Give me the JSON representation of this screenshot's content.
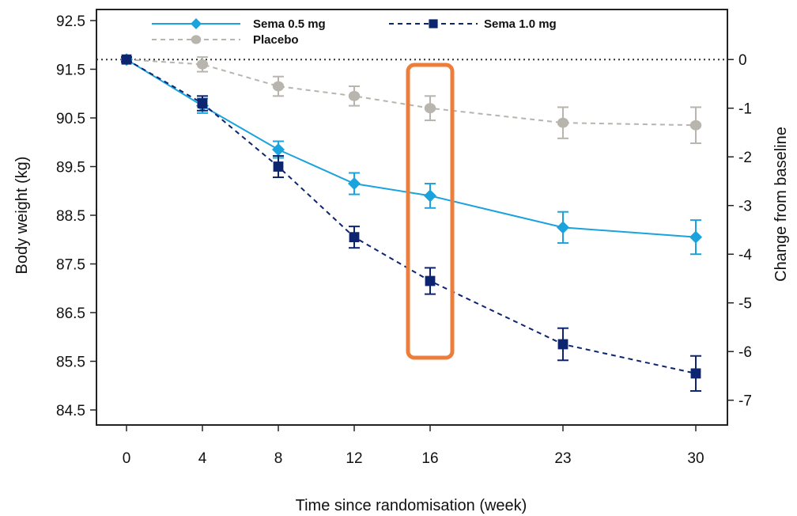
{
  "chart_data": {
    "type": "line",
    "xlabel": "Time since randomisation (week)",
    "ylabel": "Body weight (kg)",
    "ylabel_right": "Change from baseline",
    "x": [
      0,
      4,
      8,
      12,
      16,
      23,
      30
    ],
    "x_tick_labels": [
      "0",
      "4",
      "8",
      "12",
      "16",
      "23",
      "30"
    ],
    "y_ticks": [
      "92.5",
      "91.5",
      "90.5",
      "89.5",
      "88.5",
      "87.5",
      "86.5",
      "85.5",
      "84.5"
    ],
    "y_right_ticks": [
      "0",
      "-1",
      "-2",
      "-3",
      "-4",
      "-5",
      "-6",
      "-7"
    ],
    "ylim": [
      84.3,
      92.8
    ],
    "baseline_kg": 91.7,
    "baseline_line": "dotted",
    "legend": {
      "placement": "top"
    },
    "series": [
      {
        "name": "Sema 0.5 mg",
        "color": "#1aa3dc",
        "style": "solid",
        "marker": "diamond",
        "values": [
          91.7,
          90.75,
          89.85,
          89.15,
          88.9,
          88.25,
          88.05
        ],
        "error": [
          0.05,
          0.15,
          0.17,
          0.22,
          0.25,
          0.32,
          0.35
        ]
      },
      {
        "name": "Sema 1.0 mg",
        "color": "#0d2470",
        "style": "dashed",
        "marker": "square",
        "values": [
          91.7,
          90.8,
          89.5,
          88.05,
          87.15,
          85.85,
          85.25
        ],
        "error": [
          0.05,
          0.15,
          0.22,
          0.22,
          0.27,
          0.33,
          0.36
        ]
      },
      {
        "name": "Placebo",
        "color": "#b8b4ae",
        "style": "dashed",
        "marker": "circle",
        "values": [
          91.7,
          91.6,
          91.15,
          90.95,
          90.7,
          90.4,
          90.35
        ],
        "error": [
          0.05,
          0.15,
          0.2,
          0.2,
          0.25,
          0.32,
          0.37
        ]
      }
    ],
    "highlight": {
      "x": 16,
      "color": "#ed7d3a"
    }
  }
}
